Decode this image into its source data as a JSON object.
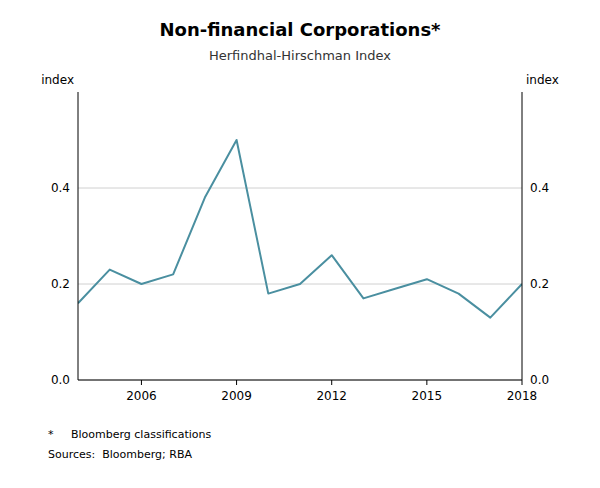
{
  "chart_data": {
    "type": "line",
    "title": "Non-financial Corporations*",
    "subtitle": "Herfindhal-Hirschman Index",
    "ylabel": "index",
    "y2label": "index",
    "x": [
      2004,
      2005,
      2006,
      2007,
      2008,
      2009,
      2010,
      2011,
      2012,
      2013,
      2014,
      2015,
      2016,
      2017,
      2018
    ],
    "values": [
      0.16,
      0.23,
      0.2,
      0.22,
      0.38,
      0.5,
      0.18,
      0.2,
      0.26,
      0.17,
      0.19,
      0.21,
      0.18,
      0.13,
      0.2
    ],
    "color": "#4a8fa0",
    "xlim": [
      2004,
      2018
    ],
    "xticks": [
      2006,
      2009,
      2012,
      2015,
      2018
    ],
    "ylim": [
      0.0,
      0.6
    ],
    "yticks": [
      {
        "value": 0.0,
        "label": "0.0"
      },
      0.2,
      0.4
    ],
    "y2lim": [
      0.0,
      0.6
    ],
    "y2ticks": [
      {
        "value": 0.0,
        "label": "0.0"
      },
      0.2,
      0.4
    ],
    "grid": true,
    "footnotes": [
      "*     Bloomberg classifications",
      "Sources:  Bloomberg; RBA"
    ]
  }
}
